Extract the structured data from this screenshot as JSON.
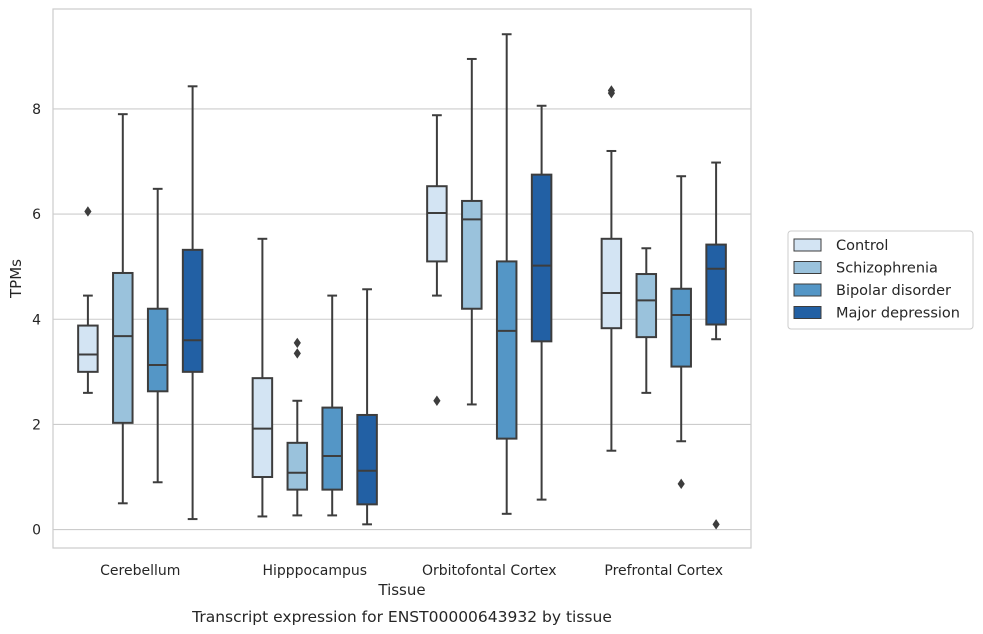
{
  "chart_data": {
    "type": "box",
    "caption": "Transcript expression for ENST00000643932 by tissue",
    "xlabel": "Tissue",
    "ylabel": "TPMs",
    "ylim": [
      -0.35,
      9.9
    ],
    "yticks": [
      0,
      2,
      4,
      6,
      8
    ],
    "grid": true,
    "legend_position": "right",
    "categories": [
      "Cerebellum",
      "Hipppocampus",
      "Orbitofontal Cortex",
      "Prefrontal Cortex"
    ],
    "series": [
      {
        "name": "Control",
        "color": "#d3e4f3",
        "boxes": [
          {
            "whislo": 2.6,
            "q1": 3.0,
            "med": 3.33,
            "q3": 3.88,
            "whishi": 4.45,
            "fliers": [
              6.05
            ]
          },
          {
            "whislo": 0.25,
            "q1": 1.0,
            "med": 1.92,
            "q3": 2.88,
            "whishi": 5.53,
            "fliers": []
          },
          {
            "whislo": 4.45,
            "q1": 5.1,
            "med": 6.02,
            "q3": 6.53,
            "whishi": 7.88,
            "fliers": [
              2.45
            ]
          },
          {
            "whislo": 1.5,
            "q1": 3.83,
            "med": 4.5,
            "q3": 5.53,
            "whishi": 7.2,
            "fliers": [
              8.3,
              8.35
            ]
          }
        ]
      },
      {
        "name": "Schizophrenia",
        "color": "#9ac2dc",
        "boxes": [
          {
            "whislo": 0.5,
            "q1": 2.03,
            "med": 3.68,
            "q3": 4.88,
            "whishi": 7.9,
            "fliers": []
          },
          {
            "whislo": 0.27,
            "q1": 0.76,
            "med": 1.08,
            "q3": 1.65,
            "whishi": 2.45,
            "fliers": [
              3.35,
              3.55
            ]
          },
          {
            "whislo": 2.38,
            "q1": 4.2,
            "med": 5.9,
            "q3": 6.25,
            "whishi": 8.95,
            "fliers": []
          },
          {
            "whislo": 2.6,
            "q1": 3.66,
            "med": 4.36,
            "q3": 4.86,
            "whishi": 5.35,
            "fliers": []
          }
        ]
      },
      {
        "name": "Bipolar disorder",
        "color": "#5496c6",
        "boxes": [
          {
            "whislo": 0.9,
            "q1": 2.63,
            "med": 3.13,
            "q3": 4.2,
            "whishi": 6.48,
            "fliers": []
          },
          {
            "whislo": 0.27,
            "q1": 0.76,
            "med": 1.4,
            "q3": 2.32,
            "whishi": 4.45,
            "fliers": []
          },
          {
            "whislo": 0.3,
            "q1": 1.73,
            "med": 3.78,
            "q3": 5.1,
            "whishi": 9.42,
            "fliers": []
          },
          {
            "whislo": 1.68,
            "q1": 3.1,
            "med": 4.08,
            "q3": 4.58,
            "whishi": 6.72,
            "fliers": [
              0.87
            ]
          }
        ]
      },
      {
        "name": "Major depression",
        "color": "#2260a4",
        "boxes": [
          {
            "whislo": 0.2,
            "q1": 3.0,
            "med": 3.6,
            "q3": 5.32,
            "whishi": 8.43,
            "fliers": []
          },
          {
            "whislo": 0.1,
            "q1": 0.48,
            "med": 1.12,
            "q3": 2.18,
            "whishi": 4.57,
            "fliers": []
          },
          {
            "whislo": 0.57,
            "q1": 3.58,
            "med": 5.02,
            "q3": 6.75,
            "whishi": 8.06,
            "fliers": []
          },
          {
            "whislo": 3.62,
            "q1": 3.9,
            "med": 4.96,
            "q3": 5.42,
            "whishi": 6.98,
            "fliers": [
              0.1
            ]
          }
        ]
      }
    ]
  }
}
